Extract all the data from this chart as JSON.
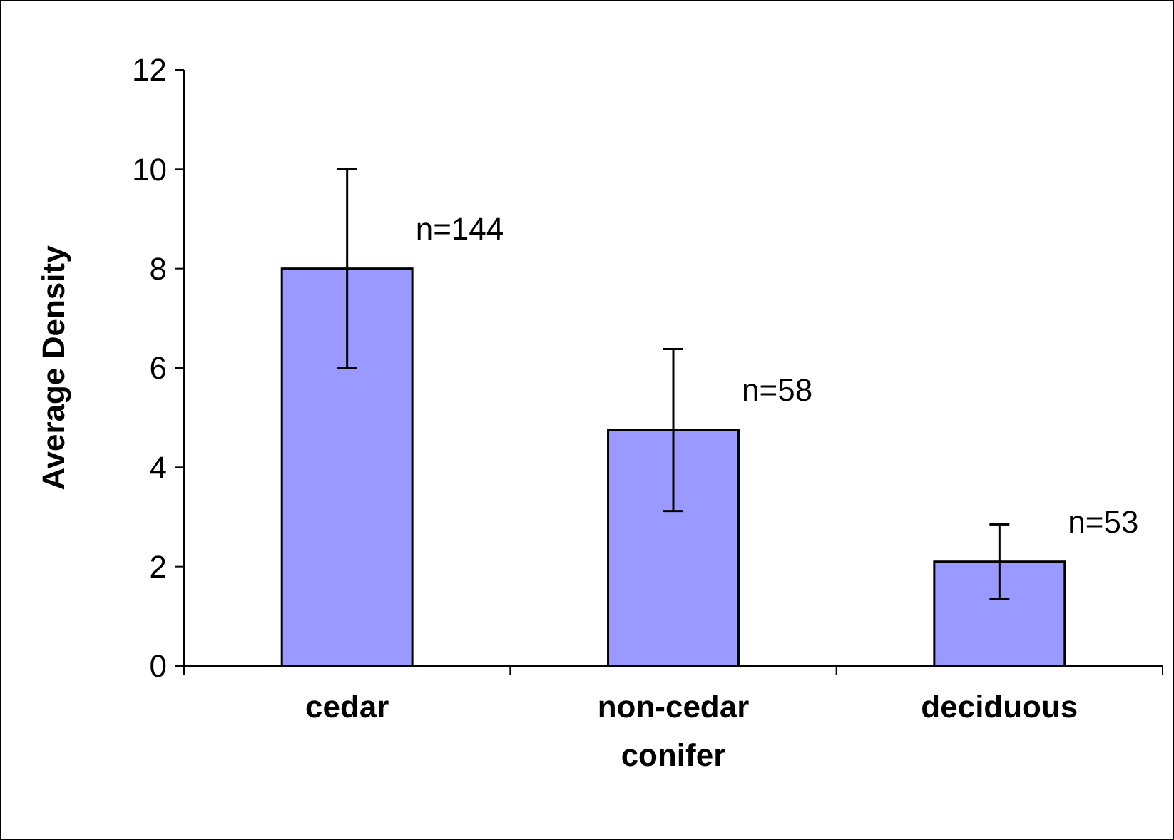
{
  "chart_data": {
    "type": "bar",
    "ylabel": "Average Density",
    "categories": [
      "cedar",
      "non-cedar conifer",
      "deciduous"
    ],
    "values": [
      8.0,
      4.75,
      2.1
    ],
    "errors": [
      2.0,
      1.63,
      0.75
    ],
    "color": "#9999ff",
    "ylim": [
      0,
      12
    ],
    "yticks": [
      0,
      2,
      4,
      6,
      8,
      10,
      12
    ],
    "grid": false,
    "annotations": [
      "n=144",
      "n=58",
      "n=53"
    ]
  }
}
